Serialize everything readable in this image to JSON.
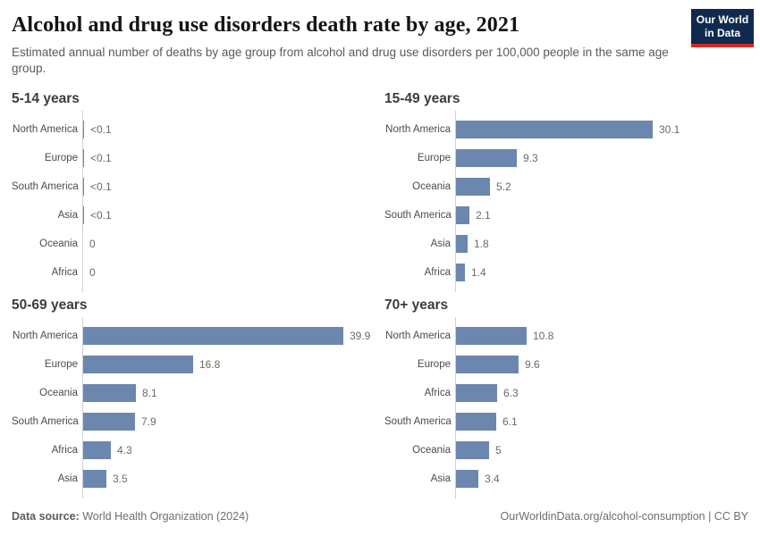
{
  "header": {
    "logo": {
      "line1": "Our World",
      "line2": "in Data"
    }
  },
  "chart_data": {
    "type": "bar",
    "orientation": "horizontal",
    "title": "Alcohol and drug use disorders death rate by age, 2021",
    "subtitle": "Estimated annual number of deaths by age group from alcohol and drug use disorders per 100,000 people in the same age group.",
    "unit": "deaths per 100,000 people",
    "value_labels_shown": true,
    "shared_x_scale": true,
    "xlim": [
      0,
      40
    ],
    "bar_color": "#6c87ae",
    "axis_color": "#ccd0d6",
    "panels": [
      {
        "title": "5-14 years",
        "categories": [
          "North America",
          "Europe",
          "South America",
          "Asia",
          "Oceania",
          "Africa"
        ],
        "values": [
          0.05,
          0.05,
          0.05,
          0.05,
          0,
          0
        ],
        "display_values": [
          "<0.1",
          "<0.1",
          "<0.1",
          "<0.1",
          "0",
          "0"
        ]
      },
      {
        "title": "15-49 years",
        "categories": [
          "North America",
          "Europe",
          "Oceania",
          "South America",
          "Asia",
          "Africa"
        ],
        "values": [
          30.1,
          9.3,
          5.2,
          2.1,
          1.8,
          1.4
        ],
        "display_values": [
          "30.1",
          "9.3",
          "5.2",
          "2.1",
          "1.8",
          "1.4"
        ]
      },
      {
        "title": "50-69 years",
        "categories": [
          "North America",
          "Europe",
          "Oceania",
          "South America",
          "Africa",
          "Asia"
        ],
        "values": [
          39.9,
          16.8,
          8.1,
          7.9,
          4.3,
          3.5
        ],
        "display_values": [
          "39.9",
          "16.8",
          "8.1",
          "7.9",
          "4.3",
          "3.5"
        ]
      },
      {
        "title": "70+ years",
        "categories": [
          "North America",
          "Europe",
          "Africa",
          "South America",
          "Oceania",
          "Asia"
        ],
        "values": [
          10.8,
          9.6,
          6.3,
          6.1,
          5,
          3.4
        ],
        "display_values": [
          "10.8",
          "9.6",
          "6.3",
          "6.1",
          "5",
          "3.4"
        ]
      }
    ]
  },
  "footer": {
    "datasource_label": "Data source:",
    "datasource_value": "World Health Organization (2024)",
    "attribution": "OurWorldinData.org/alcohol-consumption | CC BY"
  }
}
